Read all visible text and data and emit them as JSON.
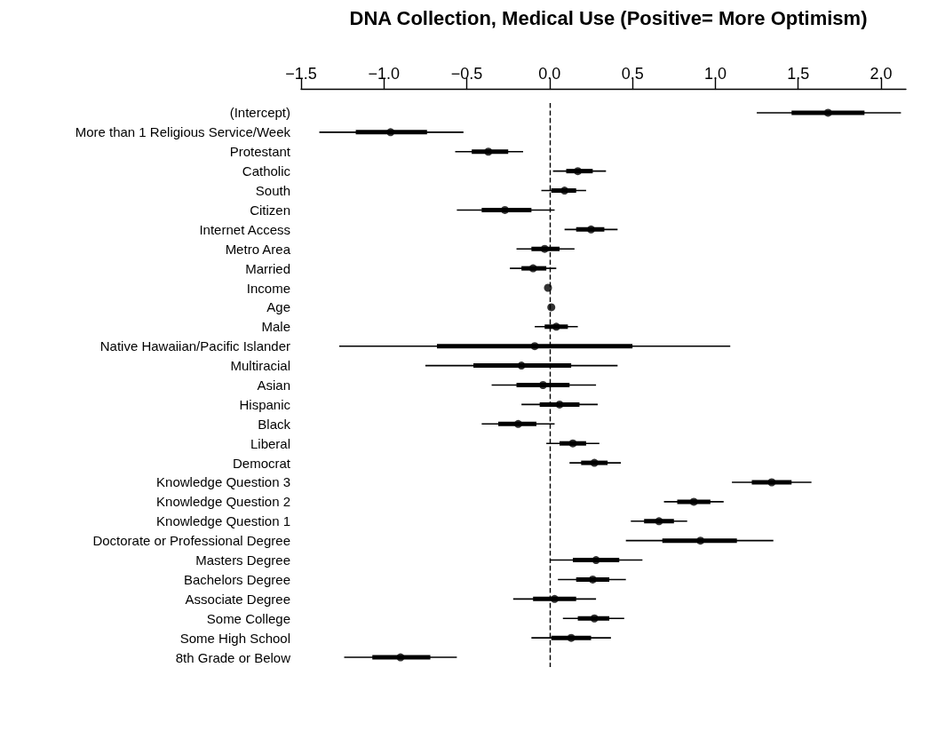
{
  "chart_data": {
    "type": "scatter",
    "title": "DNA Collection, Medical Use (Positive= More Optimism)",
    "orientation": "horizontal",
    "categories": [
      "(Intercept)",
      "More than 1 Religious Service/Week",
      "Protestant",
      "Catholic",
      "South",
      "Citizen",
      "Internet Access",
      "Metro Area",
      "Married",
      "Income",
      "Age",
      "Male",
      "Native Hawaiian/Pacific Islander",
      "Multiracial",
      "Asian",
      "Hispanic",
      "Black",
      "Liberal",
      "Democrat",
      "Knowledge Question 3",
      "Knowledge Question 2",
      "Knowledge Question 1",
      "Doctorate or Professional Degree",
      "Masters Degree",
      "Bachelors Degree",
      "Associate Degree",
      "Some College",
      "Some High School",
      "8th Grade or Below"
    ],
    "series": [
      {
        "type": "bar",
        "color": "#000000",
        "base": [
          1.46,
          -1.17,
          -0.47,
          0.1,
          0.01,
          -0.41,
          0.16,
          -0.11,
          -0.17,
          null,
          null,
          -0.03,
          -0.68,
          -0.46,
          -0.2,
          -0.06,
          -0.31,
          0.06,
          0.19,
          1.22,
          0.77,
          0.57,
          0.68,
          0.14,
          0.16,
          -0.1,
          0.17,
          0.01,
          -1.07
        ],
        "values": [
          0.44,
          0.43,
          0.22,
          0.16,
          0.15,
          0.3,
          0.17,
          0.17,
          0.15,
          null,
          null,
          0.14,
          1.18,
          0.59,
          0.32,
          0.24,
          0.23,
          0.16,
          0.16,
          0.24,
          0.2,
          0.18,
          0.45,
          0.28,
          0.2,
          0.26,
          0.19,
          0.24,
          0.35
        ]
      },
      {
        "color": "#000000",
        "values": [
          1.68,
          -0.96,
          -0.37,
          0.17,
          0.09,
          -0.27,
          0.25,
          -0.03,
          -0.1,
          -0.01,
          0.01,
          0.04,
          -0.09,
          -0.17,
          -0.04,
          0.06,
          -0.19,
          0.14,
          0.27,
          1.34,
          0.87,
          0.66,
          0.91,
          0.28,
          0.26,
          0.03,
          0.27,
          0.13,
          -0.9
        ],
        "errors": [
          [
            1.25,
            2.12
          ],
          [
            -1.39,
            -0.52
          ],
          [
            -0.57,
            -0.16
          ],
          [
            0.02,
            0.34
          ],
          [
            -0.05,
            0.22
          ],
          [
            -0.56,
            0.03
          ],
          [
            0.09,
            0.41
          ],
          [
            -0.2,
            0.15
          ],
          [
            -0.24,
            0.04
          ],
          null,
          null,
          [
            -0.09,
            0.17
          ],
          [
            -1.27,
            1.09
          ],
          [
            -0.75,
            0.41
          ],
          [
            -0.35,
            0.28
          ],
          [
            -0.17,
            0.29
          ],
          [
            -0.41,
            0.03
          ],
          [
            -0.02,
            0.3
          ],
          [
            0.12,
            0.43
          ],
          [
            1.1,
            1.58
          ],
          [
            0.69,
            1.05
          ],
          [
            0.49,
            0.83
          ],
          [
            0.46,
            1.35
          ],
          [
            0.0,
            0.56
          ],
          [
            0.05,
            0.46
          ],
          [
            -0.22,
            0.28
          ],
          [
            0.08,
            0.45
          ],
          [
            -0.11,
            0.37
          ],
          [
            -1.24,
            -0.56
          ]
        ]
      }
    ],
    "xlim": [
      -1.5,
      2.15
    ],
    "xticks": [
      {
        "value": -1.5,
        "label": "−1.5"
      },
      {
        "value": -1.0,
        "label": "−1.0"
      },
      {
        "value": -0.5,
        "label": "−0.5"
      },
      {
        "value": 0,
        "label": "0.0"
      },
      {
        "value": 0.5,
        "label": "0.5"
      },
      {
        "value": 1.0,
        "label": "1.0"
      },
      {
        "value": 1.5,
        "label": "1.5"
      },
      {
        "value": 2.0,
        "label": "2.0"
      }
    ],
    "ref_lines": [
      {
        "axis": "x",
        "value": 0,
        "line_style": "dashed",
        "color": "#000000"
      }
    ],
    "grid": false,
    "marker": "circle"
  }
}
